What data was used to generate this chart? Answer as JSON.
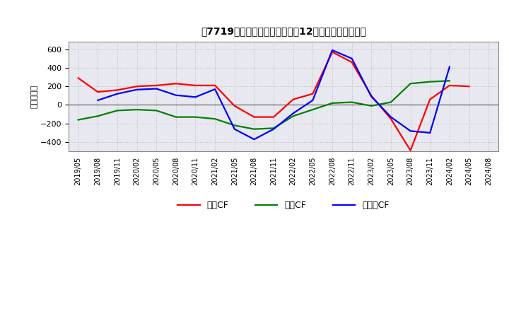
{
  "title": "　7719、 キャッシュフローの12か月移動合計の推移",
  "title_bracket": "《7719》",
  "title_full": "【7719】　キャッシュフローの12か月移動合計の推移",
  "ylabel": "（百万円）",
  "ylim": [
    -500,
    680
  ],
  "yticks": [
    -400,
    -200,
    0,
    200,
    400,
    600
  ],
  "dates": [
    "2019/05",
    "2019/08",
    "2019/11",
    "2020/02",
    "2020/05",
    "2020/08",
    "2020/11",
    "2021/02",
    "2021/05",
    "2021/08",
    "2021/11",
    "2022/02",
    "2022/05",
    "2022/08",
    "2022/11",
    "2023/02",
    "2023/05",
    "2023/08",
    "2023/11",
    "2024/02",
    "2024/05",
    "2024/08"
  ],
  "eigyo_cf": [
    290,
    140,
    160,
    200,
    210,
    230,
    210,
    210,
    -10,
    -130,
    -130,
    60,
    120,
    570,
    460,
    100,
    -150,
    -490,
    60,
    210,
    200,
    null
  ],
  "toshi_cf": [
    -160,
    -120,
    -60,
    -50,
    -60,
    -130,
    -130,
    -150,
    -220,
    -260,
    -250,
    -120,
    -50,
    20,
    30,
    -10,
    30,
    230,
    250,
    260,
    null,
    null
  ],
  "free_cf": [
    null,
    50,
    120,
    165,
    175,
    105,
    85,
    170,
    -260,
    -370,
    -260,
    -90,
    50,
    590,
    500,
    90,
    -130,
    -280,
    -300,
    410,
    null,
    null
  ],
  "eigyo_color": "#ff0000",
  "toshi_color": "#008000",
  "free_color": "#0000ff",
  "legend_labels": [
    "営業CF",
    "投資CF",
    "フリーCF"
  ],
  "bg_color": "#ffffff",
  "grid_color": "#bbbbbb",
  "plot_bg_color": "#e8e8f0"
}
